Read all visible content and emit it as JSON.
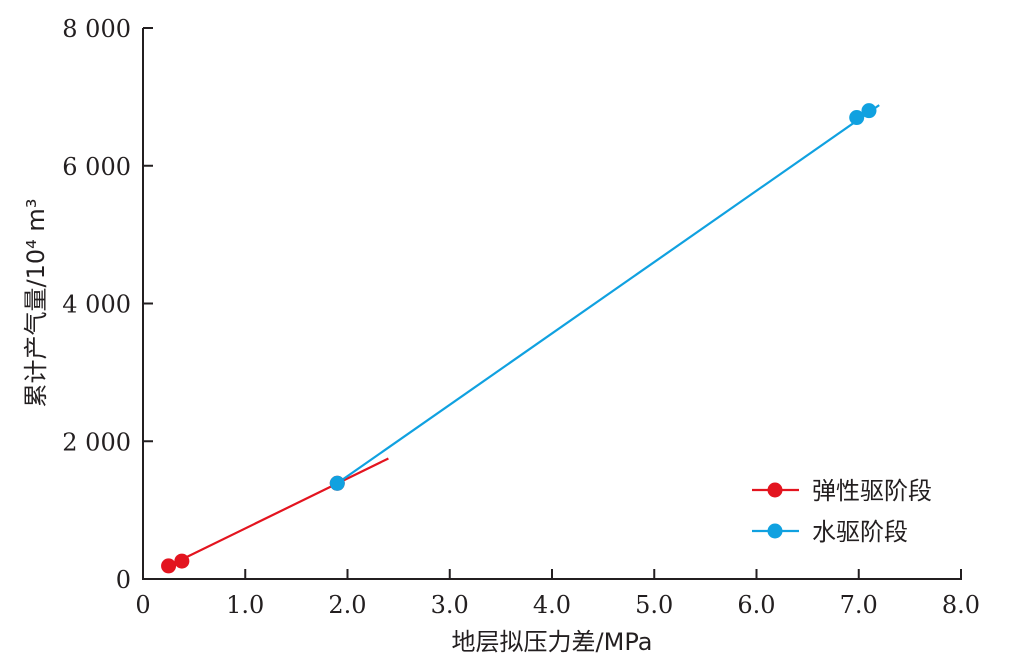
{
  "chart_data": {
    "type": "scatter",
    "xlabel": "地层拟压力差/MPa",
    "ylabel": "累计产气量/10⁴ m³",
    "xlim": [
      0,
      8
    ],
    "ylim": [
      0,
      8000
    ],
    "x_ticks": [
      {
        "value": 0,
        "label": "0"
      },
      {
        "value": 1,
        "label": "1.0"
      },
      {
        "value": 2,
        "label": "2.0"
      },
      {
        "value": 3,
        "label": "3.0"
      },
      {
        "value": 4,
        "label": "4.0"
      },
      {
        "value": 5,
        "label": "5.0"
      },
      {
        "value": 6,
        "label": "6.0"
      },
      {
        "value": 7,
        "label": "7.0"
      },
      {
        "value": 8,
        "label": "8.0"
      }
    ],
    "y_ticks": [
      {
        "value": 0,
        "label": "0"
      },
      {
        "value": 2000,
        "label": "2 000"
      },
      {
        "value": 4000,
        "label": "4 000"
      },
      {
        "value": 6000,
        "label": "6 000"
      },
      {
        "value": 8000,
        "label": "8 000"
      }
    ],
    "grid": false,
    "legend_position": "bottom-right",
    "series": [
      {
        "name": "弹性驱阶段",
        "color": "#e3141f",
        "points": [
          [
            0.25,
            190
          ],
          [
            0.38,
            260
          ],
          [
            1.9,
            1390
          ]
        ],
        "fit_line": [
          [
            0.25,
            190
          ],
          [
            2.4,
            1750
          ]
        ]
      },
      {
        "name": "水驱阶段",
        "color": "#10a1e0",
        "points": [
          [
            1.9,
            1390
          ],
          [
            6.98,
            6700
          ],
          [
            7.1,
            6800
          ]
        ],
        "fit_line": [
          [
            1.9,
            1390
          ],
          [
            7.2,
            6880
          ]
        ]
      }
    ]
  }
}
